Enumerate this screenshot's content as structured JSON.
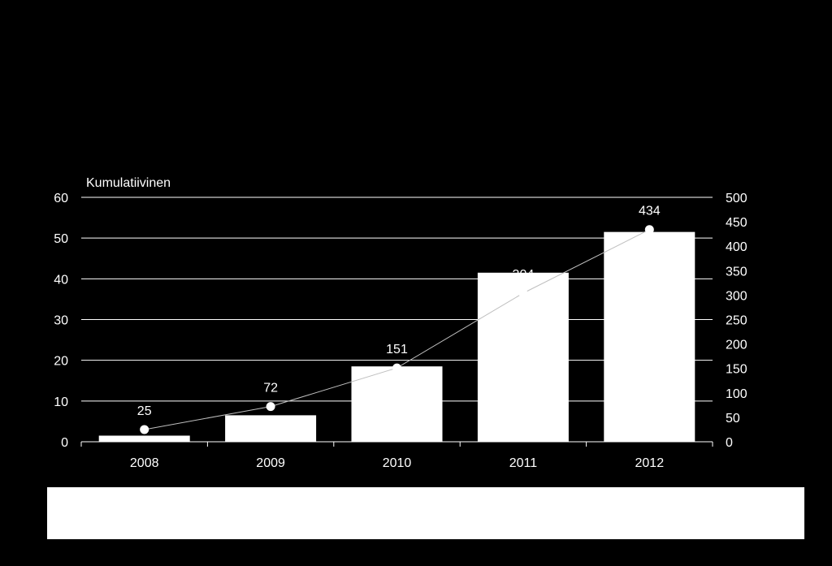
{
  "chart_data": {
    "type": "bar",
    "title": "",
    "left_axis_label": "Kumulatiivinen",
    "categories": [
      "2008",
      "2009",
      "2010",
      "2011",
      "2012"
    ],
    "bars": {
      "values": [
        1.5,
        6.5,
        18.5,
        41.5,
        51.5
      ]
    },
    "line": {
      "values": [
        25,
        72,
        151,
        304,
        434
      ],
      "data_labels": [
        "25",
        "72",
        "151",
        "304",
        "434"
      ]
    },
    "left_axis": {
      "min": 0,
      "max": 60,
      "ticks": [
        "0",
        "10",
        "20",
        "30",
        "40",
        "50",
        "60"
      ]
    },
    "right_axis": {
      "min": 0,
      "max": 500,
      "ticks": [
        "0",
        "50",
        "100",
        "150",
        "200",
        "250",
        "300",
        "350",
        "400",
        "450",
        "500"
      ]
    },
    "grid": true,
    "colors": {
      "background": "#000000",
      "bar": "#ffffff",
      "line": "#bfbfbf",
      "text": "#ffffff",
      "grid": "#ffffff"
    }
  }
}
